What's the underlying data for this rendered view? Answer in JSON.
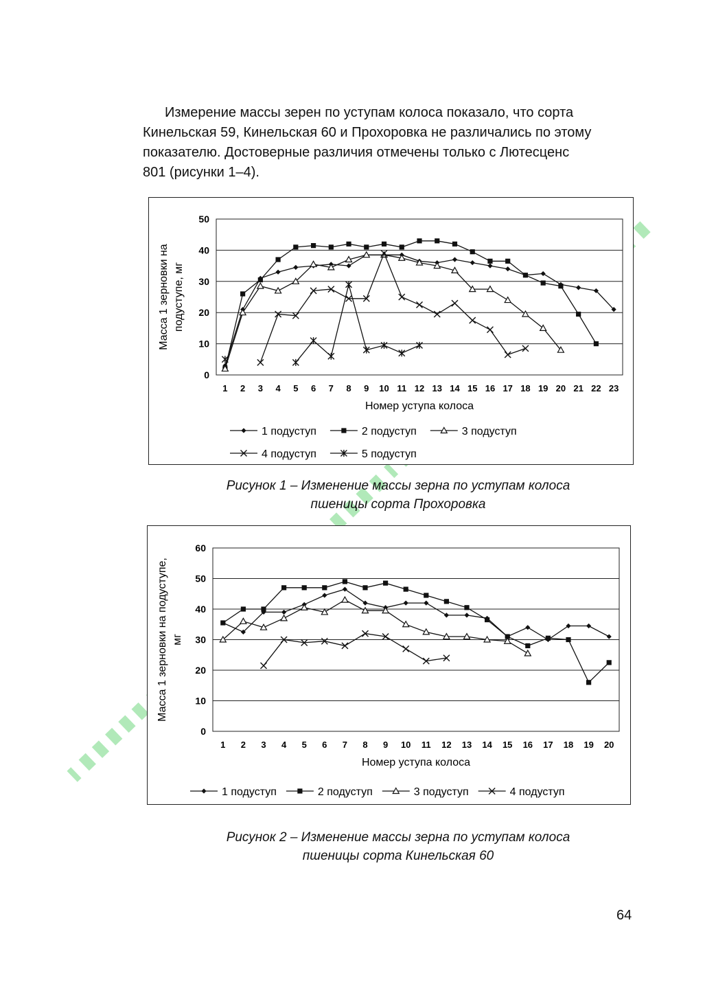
{
  "paragraph": {
    "lines": [
      "Измерение массы зерен по уступам колоса показало, что сорта",
      "Кинельская 59, Кинельская 60 и Прохоровка не различались по этому",
      "показателю. Достоверные различия отмечены только с Лютесценс",
      "801 (рисунки 1–4)."
    ]
  },
  "figure1": {
    "caption_line1": "Рисунок 1 – Изменение массы зерна по уступам колоса",
    "caption_line2": "пшеницы сорта Прохоровка"
  },
  "figure2": {
    "caption_line1": "Рисунок 2 – Изменение массы зерна по уступам колоса",
    "caption_line2": "пшеницы сорта Кинельская 60"
  },
  "page_number": "64",
  "chart_data": [
    {
      "type": "line",
      "title": "",
      "xlabel": "Номер уступа колоса",
      "ylabel": "Масса 1 зерновки на подуступе, мг",
      "ylim": [
        0,
        50
      ],
      "yticks": [
        0,
        10,
        20,
        30,
        40,
        50
      ],
      "grid": "horizontal",
      "legend_position": "bottom",
      "x": [
        1,
        2,
        3,
        4,
        5,
        6,
        7,
        8,
        9,
        10,
        11,
        12,
        13,
        14,
        15,
        16,
        17,
        18,
        19,
        20,
        21,
        22,
        23
      ],
      "series": [
        {
          "name": "1 подуступ",
          "marker": "diamond",
          "values": [
            3,
            21,
            31,
            33,
            34.5,
            35,
            35.5,
            35,
            38.5,
            38.5,
            38.5,
            36.5,
            36,
            37,
            36,
            35,
            34,
            32,
            32.5,
            29,
            28,
            27,
            21
          ]
        },
        {
          "name": "2 подуступ",
          "marker": "square",
          "values": [
            2,
            26,
            30.5,
            37,
            41,
            41.5,
            41,
            42,
            41,
            42,
            41,
            43,
            43,
            42,
            39.5,
            36.5,
            36.5,
            32,
            29.5,
            28.5,
            19.5,
            10,
            null
          ]
        },
        {
          "name": "3 подуступ",
          "marker": "triangle",
          "values": [
            2,
            20,
            28.5,
            27,
            30,
            35.5,
            34.5,
            37,
            38.5,
            38.5,
            37.5,
            36,
            35,
            33.5,
            27.5,
            27.5,
            24,
            19.5,
            15,
            8,
            null,
            null,
            null
          ]
        },
        {
          "name": "4 подуступ",
          "marker": "x",
          "values": [
            null,
            null,
            4,
            19.5,
            19,
            27,
            27.5,
            24.5,
            24.5,
            39,
            25,
            22.5,
            19.5,
            23,
            17.5,
            14.5,
            6.5,
            8.5,
            null,
            null,
            null,
            null,
            null
          ]
        },
        {
          "name": "5 подуступ",
          "marker": "star",
          "values": [
            5,
            null,
            null,
            null,
            4,
            11,
            6,
            29,
            8,
            9.5,
            7,
            9.5,
            null,
            null,
            null,
            null,
            null,
            null,
            null,
            null,
            null,
            null,
            null
          ]
        }
      ]
    },
    {
      "type": "line",
      "title": "",
      "xlabel": "Номер уступа колоса",
      "ylabel": "Масса 1 зерновки на подуступе, мг",
      "ylim": [
        0,
        60
      ],
      "yticks": [
        0,
        10,
        20,
        30,
        40,
        50,
        60
      ],
      "grid": "horizontal",
      "legend_position": "bottom",
      "x": [
        1,
        2,
        3,
        4,
        5,
        6,
        7,
        8,
        9,
        10,
        11,
        12,
        13,
        14,
        15,
        16,
        17,
        18,
        19,
        20
      ],
      "series": [
        {
          "name": "1 подуступ",
          "marker": "diamond",
          "values": [
            35.5,
            32.5,
            39,
            39,
            41.5,
            44.5,
            46.5,
            42,
            40.5,
            42,
            42,
            38,
            38,
            37,
            31,
            34,
            30,
            34.5,
            34.5,
            31
          ]
        },
        {
          "name": "2 подуступ",
          "marker": "square",
          "values": [
            35.5,
            40,
            40,
            47,
            47,
            47,
            49,
            47,
            48.5,
            46.5,
            44.5,
            42.5,
            40.5,
            36.5,
            31,
            28,
            30.5,
            30,
            16,
            22.5
          ]
        },
        {
          "name": "3 подуступ",
          "marker": "triangle",
          "values": [
            30,
            36,
            34,
            37,
            40.5,
            39,
            43,
            39.5,
            39.5,
            35,
            32.5,
            31,
            31,
            30,
            29.5,
            25.5,
            null,
            null,
            null,
            null
          ]
        },
        {
          "name": "4 подуступ",
          "marker": "x",
          "values": [
            null,
            null,
            21.5,
            30,
            29,
            29.5,
            28,
            32,
            31,
            27,
            23,
            24,
            null,
            null,
            null,
            null,
            null,
            null,
            null,
            null
          ]
        }
      ]
    }
  ],
  "watermark": {
    "color": "#9ee3a8"
  }
}
